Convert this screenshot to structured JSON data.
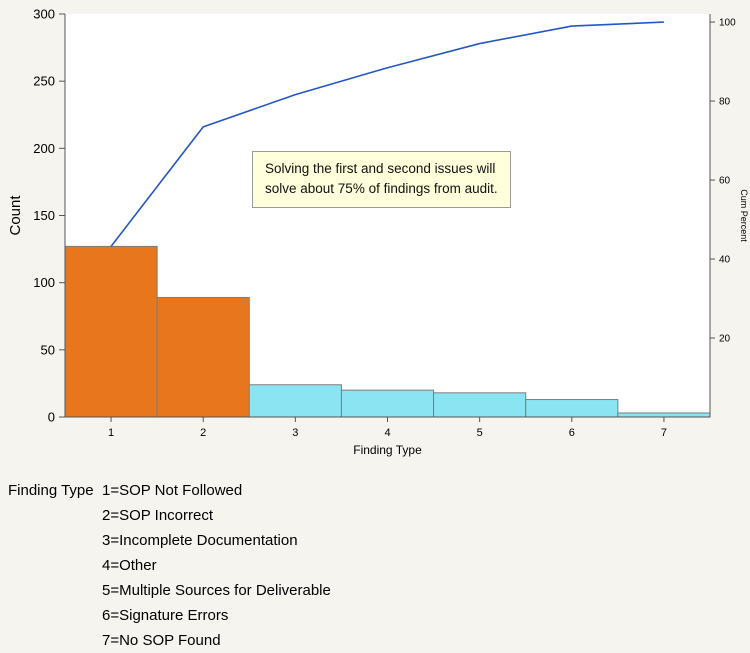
{
  "chart_data": {
    "type": "pareto",
    "title": "",
    "xlabel": "Finding Type",
    "ylabel_left": "Count",
    "ylabel_right": "Cum Percent",
    "categories": [
      "1",
      "2",
      "3",
      "4",
      "5",
      "6",
      "7"
    ],
    "bar_values": [
      127,
      89,
      24,
      20,
      18,
      13,
      3
    ],
    "cumulative_counts": [
      127,
      216,
      240,
      260,
      278,
      291,
      294
    ],
    "cumulative_percents": [
      43.2,
      73.5,
      81.6,
      88.4,
      94.6,
      99.0,
      100
    ],
    "total": 294,
    "left_axis": {
      "min": 0,
      "max": 300,
      "ticks": [
        0,
        50,
        100,
        150,
        200,
        250,
        300
      ]
    },
    "right_axis": {
      "min": 0,
      "max": 100,
      "ticks": [
        20,
        40,
        60,
        80,
        100
      ]
    },
    "bar_colors": [
      "#E8761C",
      "#E8761C",
      "#8BE4F2",
      "#8BE4F2",
      "#8BE4F2",
      "#8BE4F2",
      "#8BE4F2"
    ],
    "bar_border_color": "#7d7d7d",
    "line_color": "#2457C5",
    "annotation": {
      "lines": [
        "Solving the first and second issues will",
        "solve about 75% of findings from audit."
      ],
      "bg": "#FFFFDB",
      "border": "#9a9a9a"
    }
  },
  "legend": {
    "title": "Finding Type",
    "items": [
      "1=SOP Not Followed",
      "2=SOP Incorrect",
      "3=Incomplete Documentation",
      "4=Other",
      "5=Multiple Sources for Deliverable",
      "6=Signature Errors",
      "7=No SOP Found"
    ]
  }
}
